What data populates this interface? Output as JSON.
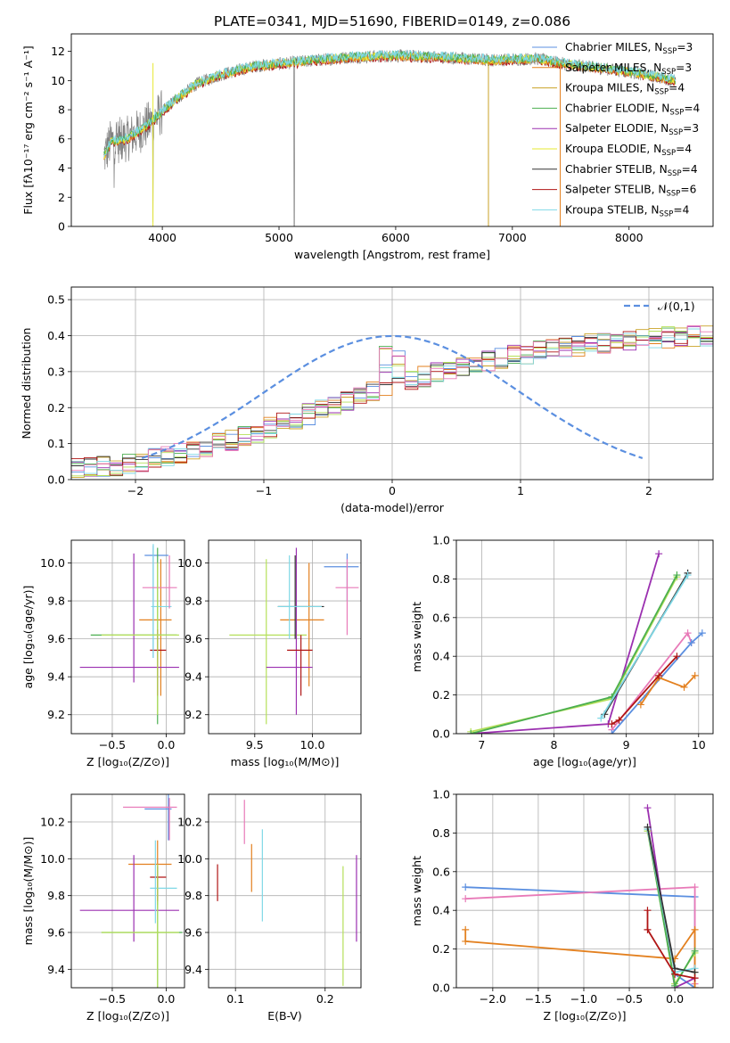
{
  "title": "PLATE=0341, MJD=51690, FIBERID=0149, z=0.086",
  "colors": {
    "chabrier_miles": "#5b8fe0",
    "salpeter_miles": "#e3801f",
    "kroupa_miles": "#c9a227",
    "chabrier_elodie": "#4caf50",
    "salpeter_elodie": "#9b30b0",
    "kroupa_elodie": "#e6e830",
    "chabrier_stelib": "#333333",
    "salpeter_stelib": "#b01515",
    "kroupa_stelib": "#7fd8e6",
    "data": "#808080",
    "pink": "#e87ab8",
    "lime": "#b5e05a"
  },
  "chart_data": [
    {
      "id": "spectrum",
      "type": "line",
      "xlabel": "wavelength [Angstrom, rest frame]",
      "ylabel": "Flux [fλ10⁻¹⁷ erg cm⁻² s⁻¹ A⁻¹]",
      "xlim": [
        3220,
        8720
      ],
      "ylim": [
        0,
        13.2
      ],
      "xticks": [
        4000,
        5000,
        6000,
        7000,
        8000
      ],
      "yticks": [
        0,
        2,
        4,
        6,
        8,
        10,
        12
      ],
      "legend_placement": "right",
      "legend": [
        {
          "label": "Chabrier MILES, N",
          "sub": "SSP",
          "n": "=3",
          "color": "chabrier_miles"
        },
        {
          "label": "Salpeter MILES, N",
          "sub": "SSP",
          "n": "=3",
          "color": "salpeter_miles"
        },
        {
          "label": "Kroupa MILES, N",
          "sub": "SSP",
          "n": "=4",
          "color": "kroupa_miles"
        },
        {
          "label": "Chabrier ELODIE, N",
          "sub": "SSP",
          "n": "=4",
          "color": "chabrier_elodie"
        },
        {
          "label": "Salpeter ELODIE, N",
          "sub": "SSP",
          "n": "=3",
          "color": "salpeter_elodie"
        },
        {
          "label": "Kroupa ELODIE, N",
          "sub": "SSP",
          "n": "=4",
          "color": "kroupa_elodie"
        },
        {
          "label": "Chabrier STELIB, N",
          "sub": "SSP",
          "n": "=4",
          "color": "chabrier_stelib"
        },
        {
          "label": "Salpeter STELIB, N",
          "sub": "SSP",
          "n": "=6",
          "color": "salpeter_stelib"
        },
        {
          "label": "Kroupa STELIB, N",
          "sub": "SSP",
          "n": "=4",
          "color": "kroupa_stelib"
        }
      ],
      "continuum": [
        [
          3500,
          4.8
        ],
        [
          3560,
          5.8
        ],
        [
          3700,
          6.0
        ],
        [
          3850,
          6.8
        ],
        [
          3950,
          7.5
        ],
        [
          4100,
          8.6
        ],
        [
          4300,
          9.8
        ],
        [
          4500,
          10.4
        ],
        [
          4800,
          11.0
        ],
        [
          5200,
          11.3
        ],
        [
          5600,
          11.6
        ],
        [
          6000,
          11.7
        ],
        [
          6400,
          11.6
        ],
        [
          6800,
          11.4
        ],
        [
          7200,
          11.5
        ],
        [
          7400,
          11.2
        ],
        [
          7600,
          11.0
        ],
        [
          8000,
          10.6
        ],
        [
          8400,
          10.0
        ]
      ]
    },
    {
      "id": "residuals",
      "type": "step",
      "xlabel": "(data-model)/error",
      "ylabel": "Normed distribution",
      "xlim": [
        -2.5,
        2.5
      ],
      "ylim": [
        0,
        0.535
      ],
      "xticks": [
        -2,
        -1,
        0,
        1,
        2
      ],
      "yticks": [
        0.0,
        0.1,
        0.2,
        0.3,
        0.4,
        0.5
      ],
      "legend": [
        {
          "label": "𝒩(0,1)",
          "style": "dashed",
          "color": "chabrier_miles"
        }
      ],
      "bin_width": 0.1,
      "bin_start": -2.5,
      "reference_values": [
        0.029,
        0.032,
        0.036,
        0.04,
        0.045,
        0.051,
        0.057,
        0.064,
        0.072,
        0.081,
        0.09,
        0.1,
        0.11,
        0.121,
        0.133,
        0.145,
        0.157,
        0.169,
        0.182,
        0.194,
        0.206,
        0.218,
        0.23,
        0.242,
        0.254,
        0.265,
        0.276,
        0.287,
        0.297,
        0.306,
        0.315,
        0.323,
        0.331,
        0.338,
        0.345,
        0.351,
        0.357,
        0.363,
        0.368,
        0.372,
        0.377,
        0.381,
        0.384,
        0.387,
        0.39,
        0.393,
        0.395,
        0.396,
        0.398,
        0.399,
        0.399,
        0.398,
        0.396,
        0.393,
        0.389,
        0.384,
        0.378,
        0.371,
        0.363,
        0.354,
        0.345,
        0.335,
        0.324,
        0.313,
        0.301,
        0.289,
        0.276,
        0.263,
        0.25,
        0.237,
        0.224,
        0.211,
        0.198,
        0.185,
        0.172,
        0.16,
        0.148,
        0.136,
        0.125,
        0.114,
        0.104,
        0.094,
        0.085,
        0.077,
        0.069,
        0.062,
        0.055,
        0.049,
        0.043,
        0.038,
        0.034,
        0.03,
        0.026,
        0.023,
        0.02,
        0.018,
        0.016,
        0.014,
        0.013,
        0.012
      ],
      "gaussian": {
        "mu": 0,
        "sigma": 1
      }
    },
    {
      "id": "age_vs_z",
      "type": "errorbar",
      "xlabel": "Z [log₁₀(Z/Z⊙)]",
      "ylabel": "age  [log₁₀(age/yr)]",
      "xlim": [
        -0.88,
        0.17
      ],
      "ylim": [
        9.1,
        10.12
      ],
      "xticks": [
        -0.5,
        0.0
      ],
      "yticks": [
        9.2,
        9.4,
        9.6,
        9.8,
        10.0
      ],
      "points": [
        {
          "x": -0.12,
          "y": 10.04,
          "xlo": -0.2,
          "xhi": 0.02,
          "ylo": 9.5,
          "yhi": 10.09,
          "color": "chabrier_miles"
        },
        {
          "x": -0.05,
          "y": 9.7,
          "xlo": -0.25,
          "xhi": 0.05,
          "ylo": 9.3,
          "yhi": 10.02,
          "color": "salpeter_miles"
        },
        {
          "x": -0.08,
          "y": 9.62,
          "xlo": -0.7,
          "xhi": 0.1,
          "ylo": 9.15,
          "yhi": 10.08,
          "color": "chabrier_elodie"
        },
        {
          "x": -0.3,
          "y": 9.45,
          "xlo": -0.8,
          "xhi": 0.12,
          "ylo": 9.37,
          "yhi": 10.05,
          "color": "salpeter_elodie"
        },
        {
          "x": -0.08,
          "y": 9.54,
          "xlo": -0.15,
          "xhi": 0.0,
          "ylo": 9.3,
          "yhi": 9.65,
          "color": "salpeter_stelib"
        },
        {
          "x": -0.12,
          "y": 9.77,
          "xlo": -0.14,
          "xhi": 0.05,
          "ylo": 9.5,
          "yhi": 10.1,
          "color": "kroupa_stelib"
        },
        {
          "x": 0.03,
          "y": 9.87,
          "xlo": -0.22,
          "xhi": 0.1,
          "ylo": 9.76,
          "yhi": 10.04,
          "color": "pink"
        },
        {
          "x": -0.08,
          "y": 9.62,
          "xlo": -0.6,
          "xhi": 0.12,
          "ylo": 9.2,
          "yhi": 10.0,
          "color": "lime"
        }
      ]
    },
    {
      "id": "age_vs_mass",
      "type": "errorbar",
      "xlabel": "mass [log₁₀(M/M⊙)]",
      "ylabel": "",
      "xlim": [
        9.1,
        10.42
      ],
      "ylim": [
        9.1,
        10.12
      ],
      "xticks": [
        9.5,
        10.0
      ],
      "yticks": [
        9.2,
        9.4,
        9.6,
        9.8,
        10.0
      ],
      "points": [
        {
          "x": 10.3,
          "y": 9.98,
          "xlo": 10.1,
          "xhi": 10.4,
          "ylo": 9.8,
          "yhi": 10.05,
          "color": "chabrier_miles"
        },
        {
          "x": 9.97,
          "y": 9.7,
          "xlo": 9.72,
          "xhi": 10.1,
          "ylo": 9.35,
          "yhi": 10.0,
          "color": "salpeter_miles"
        },
        {
          "x": 9.6,
          "y": 9.62,
          "xlo": 9.28,
          "xhi": 9.95,
          "ylo": 9.15,
          "yhi": 10.02,
          "color": "lime"
        },
        {
          "x": 9.86,
          "y": 9.45,
          "xlo": 9.6,
          "xhi": 10.0,
          "ylo": 9.2,
          "yhi": 10.08,
          "color": "salpeter_elodie"
        },
        {
          "x": 9.9,
          "y": 9.54,
          "xlo": 9.78,
          "xhi": 10.0,
          "ylo": 9.3,
          "yhi": 9.62,
          "color": "salpeter_stelib"
        },
        {
          "x": 9.85,
          "y": 9.77,
          "xlo": 9.7,
          "xhi": 10.1,
          "ylo": 9.6,
          "yhi": 10.04,
          "color": "chabrier_stelib"
        },
        {
          "x": 9.8,
          "y": 9.77,
          "xlo": 9.7,
          "xhi": 10.08,
          "ylo": 9.6,
          "yhi": 10.04,
          "color": "kroupa_stelib"
        },
        {
          "x": 10.3,
          "y": 9.87,
          "xlo": 10.2,
          "xhi": 10.4,
          "ylo": 9.62,
          "yhi": 10.02,
          "color": "pink"
        }
      ]
    },
    {
      "id": "mass_weight_vs_age",
      "type": "line",
      "xlabel": "age  [log₁₀(age/yr)]",
      "ylabel": "mass weight",
      "xlim": [
        6.65,
        10.2
      ],
      "ylim": [
        0,
        1.0
      ],
      "xticks": [
        7,
        8,
        9,
        10
      ],
      "yticks": [
        0.0,
        0.2,
        0.4,
        0.6,
        0.8,
        1.0
      ],
      "series": [
        {
          "color": "salpeter_elodie",
          "points": [
            [
              6.85,
              0.0
            ],
            [
              8.75,
              0.05
            ],
            [
              9.45,
              0.93
            ]
          ]
        },
        {
          "color": "lime",
          "points": [
            [
              6.85,
              0.01
            ],
            [
              8.8,
              0.18
            ],
            [
              9.7,
              0.81
            ]
          ]
        },
        {
          "color": "chabrier_elodie",
          "points": [
            [
              6.85,
              0.0
            ],
            [
              8.8,
              0.19
            ],
            [
              9.7,
              0.82
            ]
          ]
        },
        {
          "color": "chabrier_stelib",
          "points": [
            [
              8.7,
              0.1
            ],
            [
              9.85,
              0.83
            ]
          ]
        },
        {
          "color": "kroupa_stelib",
          "points": [
            [
              8.65,
              0.08
            ],
            [
              9.85,
              0.82
            ]
          ]
        },
        {
          "color": "pink",
          "points": [
            [
              8.8,
              0.02
            ],
            [
              9.85,
              0.52
            ],
            [
              9.9,
              0.47
            ]
          ]
        },
        {
          "color": "chabrier_miles",
          "points": [
            [
              8.8,
              0.0
            ],
            [
              9.9,
              0.47
            ],
            [
              10.05,
              0.52
            ]
          ]
        },
        {
          "color": "salpeter_miles",
          "points": [
            [
              9.2,
              0.15
            ],
            [
              9.45,
              0.29
            ],
            [
              9.8,
              0.24
            ],
            [
              9.95,
              0.3
            ]
          ]
        },
        {
          "color": "salpeter_stelib",
          "points": [
            [
              8.8,
              0.05
            ],
            [
              8.9,
              0.07
            ],
            [
              9.45,
              0.3
            ],
            [
              9.7,
              0.4
            ]
          ]
        }
      ]
    },
    {
      "id": "mass_vs_z",
      "type": "errorbar",
      "xlabel": "Z [log₁₀(Z/Z⊙)]",
      "ylabel": "mass [log₁₀(M/M⊙)]",
      "xlim": [
        -0.88,
        0.17
      ],
      "ylim": [
        9.3,
        10.35
      ],
      "xticks": [
        -0.5,
        0.0
      ],
      "yticks": [
        9.4,
        9.6,
        9.8,
        10.0,
        10.2
      ],
      "points": [
        {
          "x": 0.02,
          "y": 10.27,
          "xlo": -0.2,
          "xhi": 0.05,
          "ylo": 10.1,
          "yhi": 10.35,
          "color": "chabrier_miles"
        },
        {
          "x": -0.08,
          "y": 9.97,
          "xlo": -0.35,
          "xhi": 0.05,
          "ylo": 9.75,
          "yhi": 10.1,
          "color": "salpeter_miles"
        },
        {
          "x": -0.08,
          "y": 9.6,
          "xlo": -0.6,
          "xhi": 0.15,
          "ylo": 9.3,
          "yhi": 9.96,
          "color": "chabrier_elodie"
        },
        {
          "x": -0.3,
          "y": 9.72,
          "xlo": -0.8,
          "xhi": 0.12,
          "ylo": 9.55,
          "yhi": 10.02,
          "color": "salpeter_elodie"
        },
        {
          "x": -0.08,
          "y": 9.9,
          "xlo": -0.15,
          "xhi": 0.0,
          "ylo": 9.77,
          "yhi": 9.96,
          "color": "salpeter_stelib"
        },
        {
          "x": -0.1,
          "y": 9.84,
          "xlo": -0.15,
          "xhi": 0.1,
          "ylo": 9.65,
          "yhi": 10.1,
          "color": "kroupa_stelib"
        },
        {
          "x": 0.03,
          "y": 10.28,
          "xlo": -0.4,
          "xhi": 0.1,
          "ylo": 10.1,
          "yhi": 10.33,
          "color": "pink"
        },
        {
          "x": -0.08,
          "y": 9.6,
          "xlo": -0.6,
          "xhi": 0.12,
          "ylo": 9.3,
          "yhi": 9.97,
          "color": "lime"
        }
      ]
    },
    {
      "id": "mass_vs_ebv",
      "type": "errorbar",
      "xlabel": "E(B-V)",
      "ylabel": "",
      "xlim": [
        0.07,
        0.24
      ],
      "ylim": [
        9.3,
        10.35
      ],
      "xticks": [
        0.1,
        0.2
      ],
      "yticks": [
        9.4,
        9.6,
        9.8,
        10.0,
        10.2
      ],
      "points": [
        {
          "x": 0.08,
          "y": 9.87,
          "xlo": 0.08,
          "xhi": 0.08,
          "ylo": 9.77,
          "yhi": 9.97,
          "color": "salpeter_stelib"
        },
        {
          "x": 0.11,
          "y": 10.22,
          "xlo": 0.11,
          "xhi": 0.11,
          "ylo": 10.08,
          "yhi": 10.32,
          "color": "pink"
        },
        {
          "x": 0.118,
          "y": 9.96,
          "xlo": 0.118,
          "xhi": 0.118,
          "ylo": 9.82,
          "yhi": 10.08,
          "color": "salpeter_miles"
        },
        {
          "x": 0.13,
          "y": 9.91,
          "xlo": 0.13,
          "xhi": 0.13,
          "ylo": 9.66,
          "yhi": 10.16,
          "color": "kroupa_stelib"
        },
        {
          "x": 0.22,
          "y": 9.63,
          "xlo": 0.22,
          "xhi": 0.22,
          "ylo": 9.31,
          "yhi": 9.96,
          "color": "lime"
        },
        {
          "x": 0.235,
          "y": 9.78,
          "xlo": 0.235,
          "xhi": 0.235,
          "ylo": 9.55,
          "yhi": 10.02,
          "color": "salpeter_elodie"
        }
      ]
    },
    {
      "id": "mass_weight_vs_z",
      "type": "line",
      "xlabel": "Z [log₁₀(Z/Z⊙)]",
      "ylabel": "mass weight",
      "xlim": [
        -2.4,
        0.42
      ],
      "ylim": [
        0,
        1.0
      ],
      "xticks": [
        -2.0,
        -1.5,
        -1.0,
        -0.5,
        0.0
      ],
      "yticks": [
        0.0,
        0.2,
        0.4,
        0.6,
        0.8,
        1.0
      ],
      "series": [
        {
          "color": "chabrier_miles",
          "points": [
            [
              -2.3,
              0.52
            ],
            [
              0.22,
              0.47
            ],
            [
              0.22,
              0.0
            ],
            [
              0.0,
              0.07
            ]
          ]
        },
        {
          "color": "pink",
          "points": [
            [
              -2.3,
              0.46
            ],
            [
              0.22,
              0.52
            ],
            [
              0.22,
              0.02
            ]
          ]
        },
        {
          "color": "salpeter_miles",
          "points": [
            [
              -2.3,
              0.3
            ],
            [
              -2.3,
              0.24
            ],
            [
              0.0,
              0.15
            ],
            [
              0.22,
              0.3
            ],
            [
              0.22,
              0.0
            ]
          ]
        },
        {
          "color": "salpeter_elodie",
          "points": [
            [
              -0.3,
              0.93
            ],
            [
              0.0,
              0.0
            ],
            [
              0.22,
              0.05
            ]
          ]
        },
        {
          "color": "lime",
          "points": [
            [
              -0.3,
              0.81
            ],
            [
              0.0,
              0.02
            ],
            [
              0.22,
              0.18
            ]
          ]
        },
        {
          "color": "chabrier_elodie",
          "points": [
            [
              -0.3,
              0.82
            ],
            [
              0.0,
              0.01
            ],
            [
              0.22,
              0.19
            ]
          ]
        },
        {
          "color": "kroupa_stelib",
          "points": [
            [
              -0.3,
              0.82
            ],
            [
              0.0,
              0.08
            ],
            [
              0.22,
              0.1
            ]
          ]
        },
        {
          "color": "chabrier_stelib",
          "points": [
            [
              -0.3,
              0.83
            ],
            [
              0.0,
              0.1
            ],
            [
              0.22,
              0.08
            ]
          ]
        },
        {
          "color": "salpeter_stelib",
          "points": [
            [
              -0.3,
              0.4
            ],
            [
              -0.3,
              0.3
            ],
            [
              0.0,
              0.07
            ],
            [
              0.22,
              0.05
            ]
          ]
        }
      ]
    }
  ]
}
